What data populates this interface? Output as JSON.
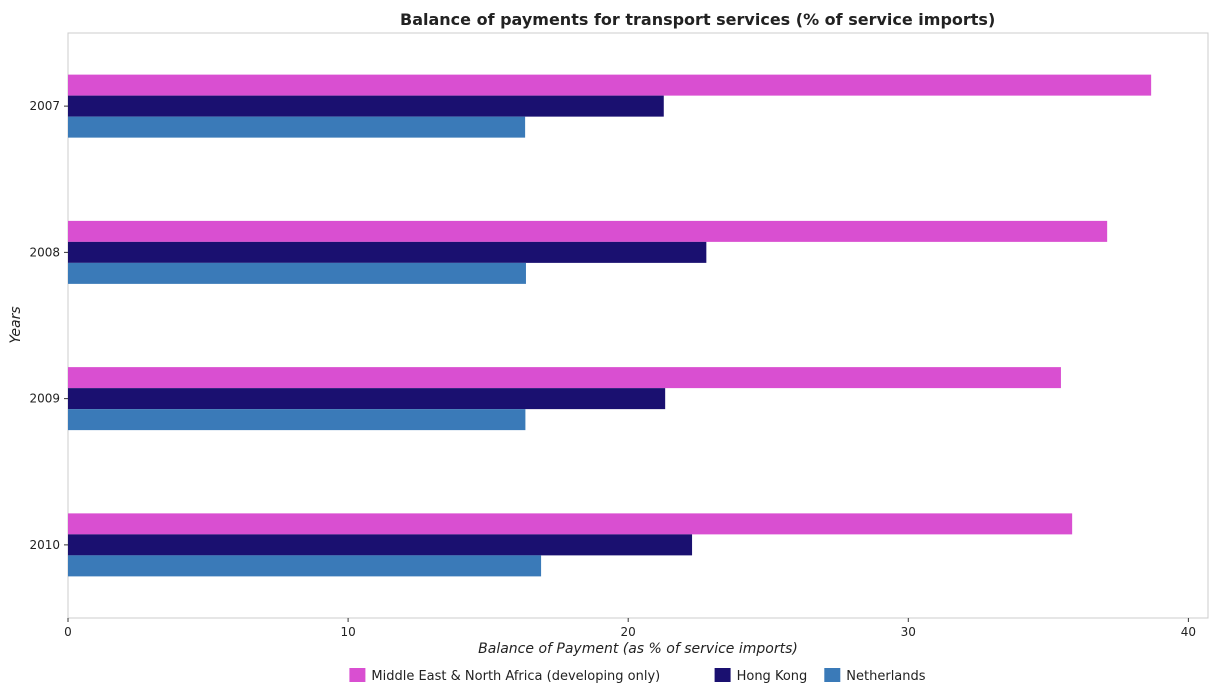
{
  "chart_data": {
    "type": "bar",
    "orientation": "horizontal",
    "title": "Balance of payments for transport services (% of service imports)",
    "xlabel": "Balance of Payment (as % of service imports)",
    "ylabel": "Years",
    "categories": [
      "2007",
      "2008",
      "2009",
      "2010"
    ],
    "series": [
      {
        "name": "Middle East & North Africa (developing only)",
        "color": "#d94fd1",
        "values": [
          38.67,
          37.1,
          35.45,
          35.85
        ]
      },
      {
        "name": "Hong Kong",
        "color": "#1a1070",
        "values": [
          21.27,
          22.79,
          21.32,
          22.28
        ]
      },
      {
        "name": "Netherlands",
        "color": "#3a7ab8",
        "values": [
          16.32,
          16.35,
          16.33,
          16.89
        ]
      }
    ],
    "xlim": [
      0,
      40.7
    ],
    "xticks": [
      0,
      10,
      20,
      30,
      40
    ],
    "grid": false,
    "legend_position": "bottom"
  }
}
